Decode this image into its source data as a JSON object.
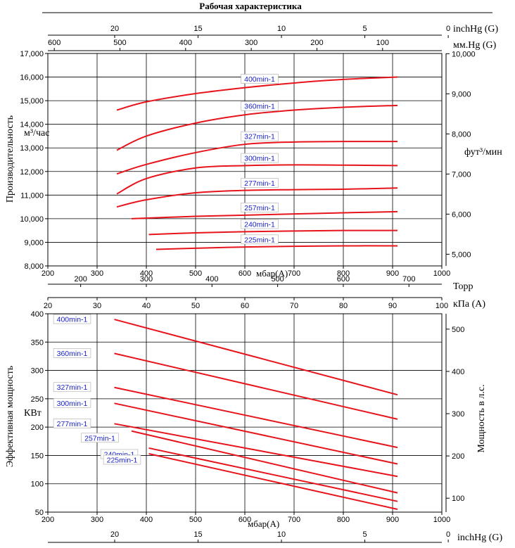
{
  "title": "Рабочая характеристика",
  "top_chart": {
    "ylabel_left": "Производительность",
    "ylabel_left_unit": "м³/час",
    "ylabel_right_unit": "фут³/мин",
    "xlabel": "мбар(A)",
    "top_axis1_label": "inchHg (G)",
    "top_axis2_label": "мм.Hg (G)"
  },
  "bottom_chart": {
    "ylabel_left": "Эффективная мощность",
    "ylabel_left_unit": "КВт",
    "ylabel_right": "Мощность в л.с.",
    "xlabel": "мбар(A)",
    "top_axis1_label": "Торр",
    "top_axis2_label": "кПа (A)",
    "bottom_axis_label": "inchHg (G)"
  },
  "chart_data": [
    {
      "type": "line",
      "title": "Рабочая характеристика",
      "xlabel": "мбар(A)",
      "ylabel": "Производительность м³/час",
      "xlim": [
        200,
        1000
      ],
      "ylim": [
        8000,
        17000
      ],
      "x_ticks": [
        "200",
        "300",
        "400",
        "500",
        "600",
        "700",
        "800",
        "900",
        "1000"
      ],
      "y_ticks": [
        "8,000",
        "9,000",
        "10,000",
        "11,000",
        "12,000",
        "13,000",
        "14,000",
        "15,000",
        "16,000",
        "17,000"
      ],
      "secondary_axes": {
        "inchHg_G": [
          "20",
          "15",
          "10",
          "5",
          "0"
        ],
        "mmHg_G": [
          "600",
          "500",
          "400",
          "300",
          "200",
          "100"
        ],
        "ft3_min": [
          "5,000",
          "6,000",
          "7,000",
          "8,000",
          "9,000",
          "10,000"
        ]
      },
      "grid": true,
      "series": [
        {
          "name": "400min-1",
          "x": [
            340,
            400,
            500,
            600,
            700,
            800,
            910
          ],
          "y": [
            14600,
            14950,
            15300,
            15550,
            15750,
            15900,
            16000
          ]
        },
        {
          "name": "360min-1",
          "x": [
            340,
            400,
            500,
            600,
            700,
            800,
            910
          ],
          "y": [
            12900,
            13500,
            14050,
            14400,
            14600,
            14720,
            14800
          ]
        },
        {
          "name": "327min-1",
          "x": [
            340,
            400,
            500,
            600,
            700,
            800,
            910
          ],
          "y": [
            11900,
            12300,
            12800,
            13150,
            13250,
            13270,
            13270
          ]
        },
        {
          "name": "300min-1",
          "x": [
            340,
            400,
            500,
            600,
            700,
            800,
            910
          ],
          "y": [
            11050,
            11700,
            12150,
            12250,
            12280,
            12270,
            12250
          ]
        },
        {
          "name": "277min-1",
          "x": [
            340,
            400,
            500,
            600,
            700,
            800,
            910
          ],
          "y": [
            10500,
            10800,
            11100,
            11200,
            11230,
            11250,
            11300
          ]
        },
        {
          "name": "257min-1",
          "x": [
            370,
            500,
            600,
            700,
            800,
            910
          ],
          "y": [
            10000,
            10100,
            10150,
            10200,
            10250,
            10300
          ]
        },
        {
          "name": "240min-1",
          "x": [
            405,
            500,
            600,
            700,
            800,
            910
          ],
          "y": [
            9330,
            9400,
            9450,
            9480,
            9500,
            9500
          ]
        },
        {
          "name": "225min-1",
          "x": [
            420,
            500,
            600,
            700,
            800,
            910
          ],
          "y": [
            8700,
            8750,
            8800,
            8830,
            8850,
            8850
          ]
        }
      ]
    },
    {
      "type": "line",
      "xlabel": "мбар(A)",
      "ylabel": "Эффективная мощность КВт",
      "xlim": [
        200,
        1000
      ],
      "ylim": [
        50,
        400
      ],
      "x_ticks": [
        "200",
        "300",
        "400",
        "500",
        "600",
        "700",
        "800",
        "900",
        "1000"
      ],
      "y_ticks": [
        "50",
        "100",
        "150",
        "200",
        "250",
        "300",
        "350",
        "400"
      ],
      "secondary_axes": {
        "torr": [
          "200",
          "300",
          "400",
          "500",
          "600",
          "700"
        ],
        "kPa_A": [
          "20",
          "30",
          "40",
          "50",
          "60",
          "70",
          "80",
          "90",
          "100"
        ],
        "hp": [
          "100",
          "200",
          "300",
          "400",
          "500"
        ],
        "inchHg_G": [
          "20",
          "15",
          "10",
          "5",
          "0"
        ]
      },
      "grid": true,
      "series": [
        {
          "name": "400min-1",
          "x": [
            335,
            910
          ],
          "y": [
            390,
            257
          ]
        },
        {
          "name": "360min-1",
          "x": [
            335,
            910
          ],
          "y": [
            330,
            214
          ]
        },
        {
          "name": "327min-1",
          "x": [
            335,
            910
          ],
          "y": [
            270,
            164
          ]
        },
        {
          "name": "300min-1",
          "x": [
            335,
            910
          ],
          "y": [
            242,
            135
          ]
        },
        {
          "name": "277min-1",
          "x": [
            335,
            910
          ],
          "y": [
            206,
            113
          ]
        },
        {
          "name": "257min-1",
          "x": [
            370,
            910
          ],
          "y": [
            193,
            84
          ]
        },
        {
          "name": "240min-1",
          "x": [
            405,
            910
          ],
          "y": [
            163,
            69
          ]
        },
        {
          "name": "225min-1",
          "x": [
            405,
            910
          ],
          "y": [
            153,
            55
          ]
        }
      ]
    }
  ]
}
